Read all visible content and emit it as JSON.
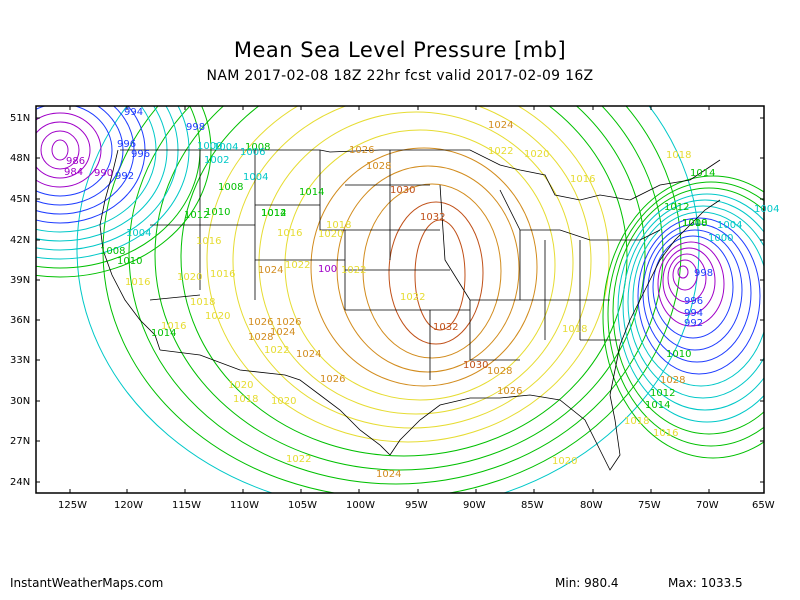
{
  "title": "Mean Sea Level Pressure [mb]",
  "subtitle": "NAM 2017-02-08 18Z 22hr fcst valid 2017-02-09 16Z",
  "footer": {
    "site": "InstantWeatherMaps.com",
    "min_label": "Min:",
    "min_value": "980.4",
    "max_label": "Max:",
    "max_value": "1033.5"
  },
  "lat_labels": [
    "51N",
    "48N",
    "45N",
    "42N",
    "39N",
    "36N",
    "33N",
    "30N",
    "27N",
    "24N"
  ],
  "lon_labels": [
    "125W",
    "120W",
    "115W",
    "110W",
    "105W",
    "100W",
    "95W",
    "90W",
    "85W",
    "80W",
    "75W",
    "70W",
    "65W"
  ],
  "contour_labels": [
    "994",
    "998",
    "996",
    "996",
    "986",
    "984",
    "990",
    "992",
    "1000",
    "1004",
    "1008",
    "1002",
    "1006",
    "1004",
    "1008",
    "1012",
    "1010",
    "1004",
    "1008",
    "1010",
    "1014",
    "1016",
    "1016",
    "1014",
    "1012",
    "1016",
    "1020",
    "1022",
    "1024",
    "1022",
    "1026",
    "1028",
    "1030",
    "1032",
    "1032",
    "1030",
    "1028",
    "1026",
    "1024",
    "1022",
    "1020",
    "1018",
    "1016",
    "1014",
    "1012",
    "1010",
    "1008",
    "1004",
    "1000",
    "998",
    "996",
    "994",
    "992",
    "1018",
    "1016",
    "1014",
    "1012",
    "1020",
    "1018",
    "1020",
    "1024",
    "1026",
    "1024",
    "1022",
    "1020",
    "1018",
    "1016",
    "1014",
    "1026",
    "1028",
    "1016",
    "1018",
    "1020",
    "1022",
    "1024",
    "1026",
    "1028",
    "1010",
    "1004",
    "100",
    "1018",
    "1020",
    "1022"
  ],
  "colors": {
    "frame": "#000000",
    "low_purple": "#a000c8",
    "blue": "#1e3cff",
    "cyan": "#00c8c8",
    "green": "#00c000",
    "yellow": "#e6dc32",
    "orange": "#d28c1e",
    "brown": "#c05018"
  }
}
